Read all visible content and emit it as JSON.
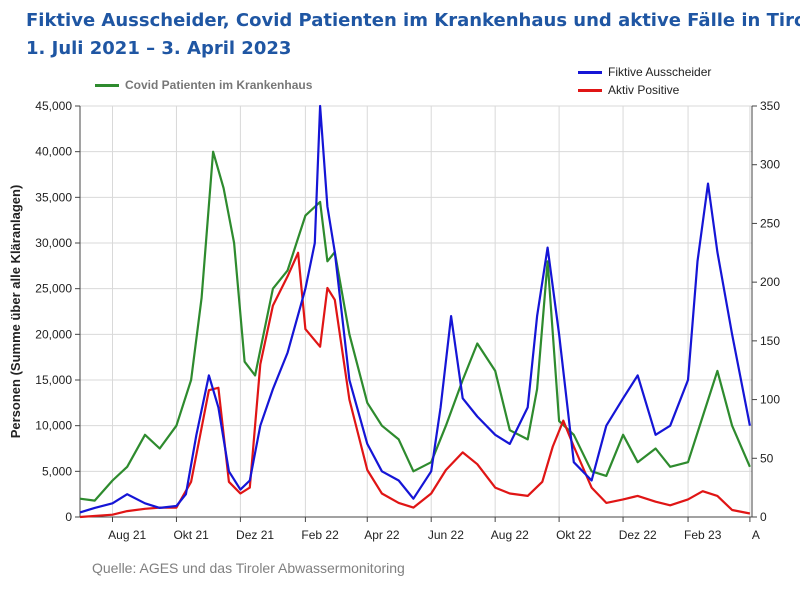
{
  "title_line1": "Fiktive Ausscheider, Covid Patienten im Krankenhaus und aktive Fälle in Tirol",
  "title_line2": "1. Juli 2021 – 3. April 2023",
  "source": "Quelle: AGES und das Tiroler Abwassermonitoring",
  "colors": {
    "blue": "#1515d6",
    "green": "#2e8b2e",
    "red": "#e01515",
    "title": "#1f56a3"
  },
  "chart_data": {
    "type": "line",
    "xlabel": "",
    "ylabel": "Personen (Summe über alle Kläranlagen)",
    "ylim_left": [
      0,
      45000
    ],
    "ylim_right": [
      0,
      350
    ],
    "yticks_left": [
      "0",
      "5,000",
      "10,000",
      "15,000",
      "20,000",
      "25,000",
      "30,000",
      "35,000",
      "40,000",
      "45,000"
    ],
    "yticks_right": [
      "0",
      "50",
      "100",
      "150",
      "200",
      "250",
      "300",
      "350"
    ],
    "xticks": [
      "Aug 21",
      "Okt 21",
      "Dez 21",
      "Feb 22",
      "Apr 22",
      "Jun 22",
      "Aug 22",
      "Okt 22",
      "Dez 22",
      "Feb 23",
      "A"
    ],
    "xlim": [
      "2021-07-01",
      "2023-04-03"
    ],
    "grid": true,
    "series": [
      {
        "name": "Fiktive Ausscheider",
        "axis": "left",
        "color": "#1515d6",
        "legend_position": "top-right",
        "x": [
          "2021-07-01",
          "2021-07-15",
          "2021-08-01",
          "2021-08-15",
          "2021-09-01",
          "2021-09-15",
          "2021-10-01",
          "2021-10-10",
          "2021-10-20",
          "2021-11-01",
          "2021-11-10",
          "2021-11-20",
          "2021-12-01",
          "2021-12-10",
          "2021-12-20",
          "2022-01-01",
          "2022-01-15",
          "2022-02-01",
          "2022-02-10",
          "2022-02-15",
          "2022-02-22",
          "2022-03-01",
          "2022-03-15",
          "2022-04-01",
          "2022-04-15",
          "2022-05-01",
          "2022-05-15",
          "2022-06-01",
          "2022-06-10",
          "2022-06-20",
          "2022-07-01",
          "2022-07-15",
          "2022-08-01",
          "2022-08-15",
          "2022-09-01",
          "2022-09-10",
          "2022-09-20",
          "2022-10-01",
          "2022-10-15",
          "2022-11-01",
          "2022-11-15",
          "2022-12-01",
          "2022-12-15",
          "2023-01-01",
          "2023-01-15",
          "2023-02-01",
          "2023-02-10",
          "2023-02-20",
          "2023-03-01",
          "2023-03-15",
          "2023-04-01"
        ],
        "y": [
          500,
          1000,
          1500,
          2500,
          1500,
          1000,
          1200,
          2500,
          9000,
          15500,
          12000,
          5000,
          3000,
          4000,
          10000,
          14000,
          18000,
          25000,
          30000,
          45000,
          34000,
          29000,
          15000,
          8000,
          5000,
          4000,
          2000,
          5000,
          12000,
          22000,
          13000,
          11000,
          9000,
          8000,
          12000,
          22000,
          29500,
          20000,
          6000,
          4000,
          10000,
          13000,
          15500,
          9000,
          10000,
          15000,
          28000,
          36500,
          29000,
          20000,
          10000
        ]
      },
      {
        "name": "Covid Patienten im Krankenhaus",
        "axis": "left",
        "color": "#2e8b2e",
        "legend_position": "top-left",
        "x": [
          "2021-07-01",
          "2021-07-15",
          "2021-08-01",
          "2021-08-15",
          "2021-09-01",
          "2021-09-15",
          "2021-10-01",
          "2021-10-15",
          "2021-10-25",
          "2021-11-05",
          "2021-11-15",
          "2021-11-25",
          "2021-12-05",
          "2021-12-15",
          "2022-01-01",
          "2022-01-15",
          "2022-02-01",
          "2022-02-15",
          "2022-02-22",
          "2022-03-01",
          "2022-03-15",
          "2022-04-01",
          "2022-04-15",
          "2022-05-01",
          "2022-05-15",
          "2022-06-01",
          "2022-06-15",
          "2022-07-01",
          "2022-07-15",
          "2022-08-01",
          "2022-08-15",
          "2022-09-01",
          "2022-09-10",
          "2022-09-20",
          "2022-10-01",
          "2022-10-15",
          "2022-11-01",
          "2022-11-15",
          "2022-12-01",
          "2022-12-15",
          "2023-01-01",
          "2023-01-15",
          "2023-02-01",
          "2023-02-15",
          "2023-03-01",
          "2023-03-15",
          "2023-04-01"
        ],
        "y": [
          2000,
          1800,
          4000,
          5500,
          9000,
          7500,
          10000,
          15000,
          24000,
          40000,
          36000,
          30000,
          17000,
          15500,
          25000,
          27000,
          33000,
          34500,
          28000,
          29000,
          20000,
          12500,
          10000,
          8500,
          5000,
          6000,
          10000,
          15000,
          19000,
          16000,
          9500,
          8500,
          14000,
          28000,
          10500,
          9000,
          5000,
          4500,
          9000,
          6000,
          7500,
          5500,
          6000,
          11000,
          16000,
          10000,
          5500
        ]
      },
      {
        "name": "Aktiv Positive",
        "axis": "right",
        "color": "#e01515",
        "legend_position": "top-right",
        "x": [
          "2021-07-01",
          "2021-08-01",
          "2021-08-15",
          "2021-09-01",
          "2021-09-15",
          "2021-10-01",
          "2021-10-15",
          "2021-11-01",
          "2021-11-10",
          "2021-11-20",
          "2021-12-01",
          "2021-12-10",
          "2021-12-20",
          "2022-01-01",
          "2022-01-15",
          "2022-01-25",
          "2022-02-01",
          "2022-02-15",
          "2022-02-22",
          "2022-03-01",
          "2022-03-15",
          "2022-04-01",
          "2022-04-15",
          "2022-05-01",
          "2022-05-15",
          "2022-06-01",
          "2022-06-15",
          "2022-07-01",
          "2022-07-15",
          "2022-08-01",
          "2022-08-15",
          "2022-09-01",
          "2022-09-15",
          "2022-09-25",
          "2022-10-05",
          "2022-10-15",
          "2022-11-01",
          "2022-11-15",
          "2022-12-01",
          "2022-12-15",
          "2023-01-01",
          "2023-01-15",
          "2023-02-01",
          "2023-02-15",
          "2023-03-01",
          "2023-03-15",
          "2023-04-01"
        ],
        "y": [
          0,
          2,
          5,
          7,
          8,
          8,
          30,
          108,
          110,
          30,
          20,
          25,
          130,
          180,
          205,
          225,
          160,
          145,
          195,
          185,
          100,
          40,
          20,
          12,
          8,
          20,
          40,
          55,
          45,
          25,
          20,
          18,
          30,
          60,
          82,
          60,
          25,
          12,
          15,
          18,
          13,
          10,
          15,
          22,
          18,
          6,
          3
        ]
      }
    ]
  }
}
